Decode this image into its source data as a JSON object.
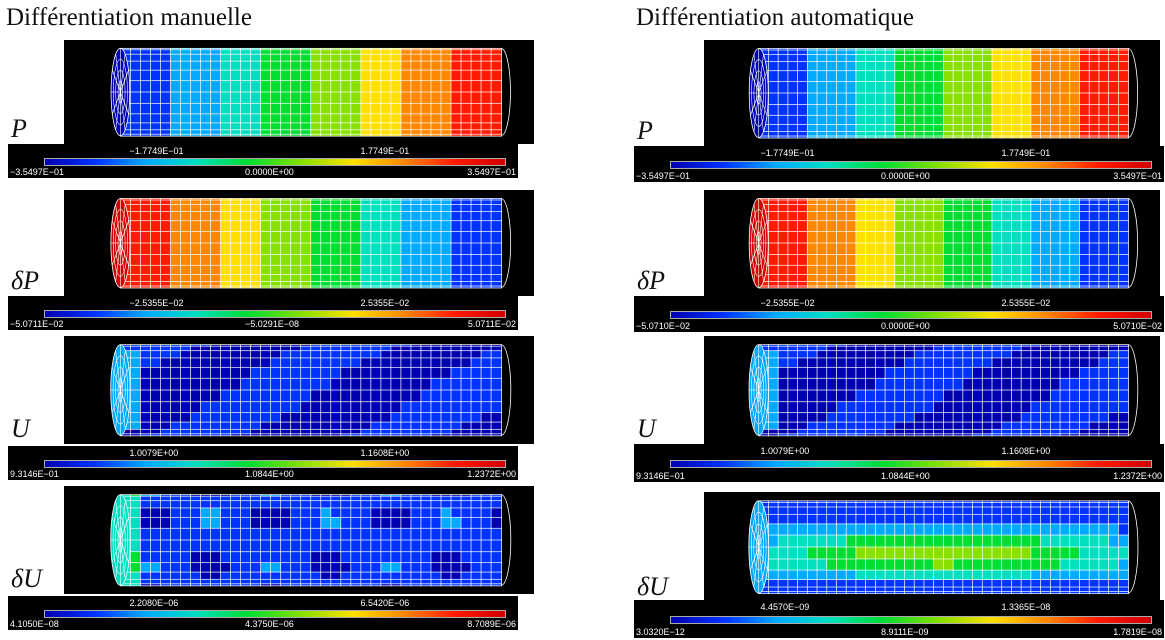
{
  "left_title": "Différentiation manuelle",
  "right_title": "Différentiation automatique",
  "columns": [
    {
      "panels": [
        {
          "label": "P",
          "colormap": "increasing",
          "ticks_top": [
            "−1.7749E−01",
            "1.7749E−01"
          ],
          "ticks_bottom": [
            "−3.5497E−01",
            "0.0000E+00",
            "3.5497E−01"
          ]
        },
        {
          "label": "δP",
          "colormap": "decreasing",
          "ticks_top": [
            "−2.5355E−02",
            "2.5355E−02"
          ],
          "ticks_bottom": [
            "−5.0711E−02",
            "−5.0291E−08",
            "5.0711E−02"
          ]
        },
        {
          "label": "U",
          "colormap": "low-blue",
          "ticks_top": [
            "1.0079E+00",
            "1.1608E+00"
          ],
          "ticks_bottom": [
            "9.3146E−01",
            "1.0844E+00",
            "1.2372E+00"
          ]
        },
        {
          "label": "δU",
          "colormap": "patchy-blue",
          "ticks_top": [
            "2.2080E−06",
            "6.5420E−06"
          ],
          "ticks_bottom": [
            "4.1050E−08",
            "4.3750E−06",
            "8.7089E−06"
          ]
        }
      ]
    },
    {
      "panels": [
        {
          "label": "P",
          "colormap": "increasing",
          "ticks_top": [
            "−1.7749E−01",
            "1.7749E−01"
          ],
          "ticks_bottom": [
            "−3.5497E−01",
            "0.0000E+00",
            "3.5497E−01"
          ]
        },
        {
          "label": "δP",
          "colormap": "decreasing",
          "ticks_top": [
            "−2.5355E−02",
            "2.5355E−02"
          ],
          "ticks_bottom": [
            "−5.0710E−02",
            "0.0000E+00",
            "5.0710E−02"
          ]
        },
        {
          "label": "U",
          "colormap": "low-blue",
          "ticks_top": [
            "1.0079E+00",
            "1.1608E+00"
          ],
          "ticks_bottom": [
            "9.3146E−01",
            "1.0844E+00",
            "1.2372E+00"
          ]
        },
        {
          "label": "δU",
          "colormap": "green-band",
          "ticks_top": [
            "4.4570E−09",
            "1.3365E−08"
          ],
          "ticks_bottom": [
            "3.0320E−12",
            "8.9111E−09",
            "1.7819E−08"
          ]
        }
      ]
    }
  ],
  "colors": {
    "jet": [
      "#0000b0",
      "#0033ff",
      "#00aaff",
      "#00e0c0",
      "#00dd33",
      "#88e000",
      "#ffe000",
      "#ff8800",
      "#ff1a00",
      "#d00000"
    ],
    "background": "#000000",
    "mesh": "#ffffff"
  }
}
